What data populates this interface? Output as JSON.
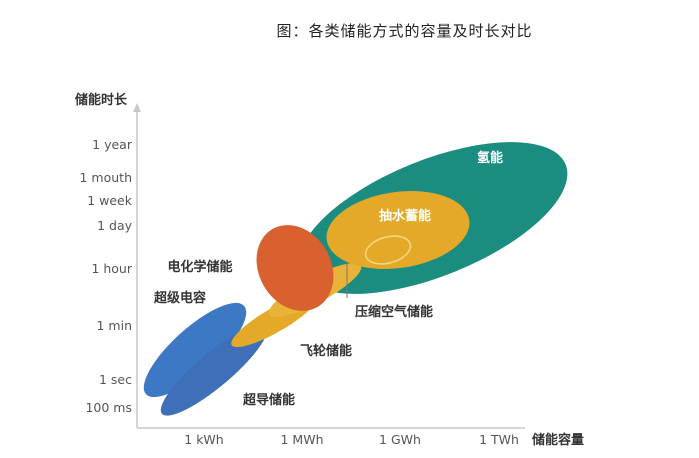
{
  "figure": {
    "caption": "图：各类储能方式的容量及时长对比",
    "y_axis_title": "储能时长",
    "x_axis_title": "储能容量",
    "y_ticks": [
      "1 year",
      "1 mouth",
      "1 week",
      "1 day",
      "1 hour",
      "1 min",
      "1 sec",
      "100 ms"
    ],
    "x_ticks": [
      "1 kWh",
      "1 MWh",
      "1 GWh",
      "1 TWh"
    ],
    "regions": {
      "hydrogen": "氢能",
      "pumped_hydro": "抽水蓄能",
      "electrochemical": "电化学储能",
      "supercapacitor": "超级电容",
      "compressed_air": "压缩空气储能",
      "flywheel": "飞轮储能",
      "superconducting": "超导储能"
    },
    "colors": {
      "hydrogen": "#1a8c80",
      "pumped_hydro": "#e4a928",
      "electrochemical": "#d9612f",
      "supercapacitor": "#3d78c4",
      "superconducting": "#3f6fb8",
      "flywheel": "#e4a928",
      "compressed_air": "#e8b338"
    }
  }
}
